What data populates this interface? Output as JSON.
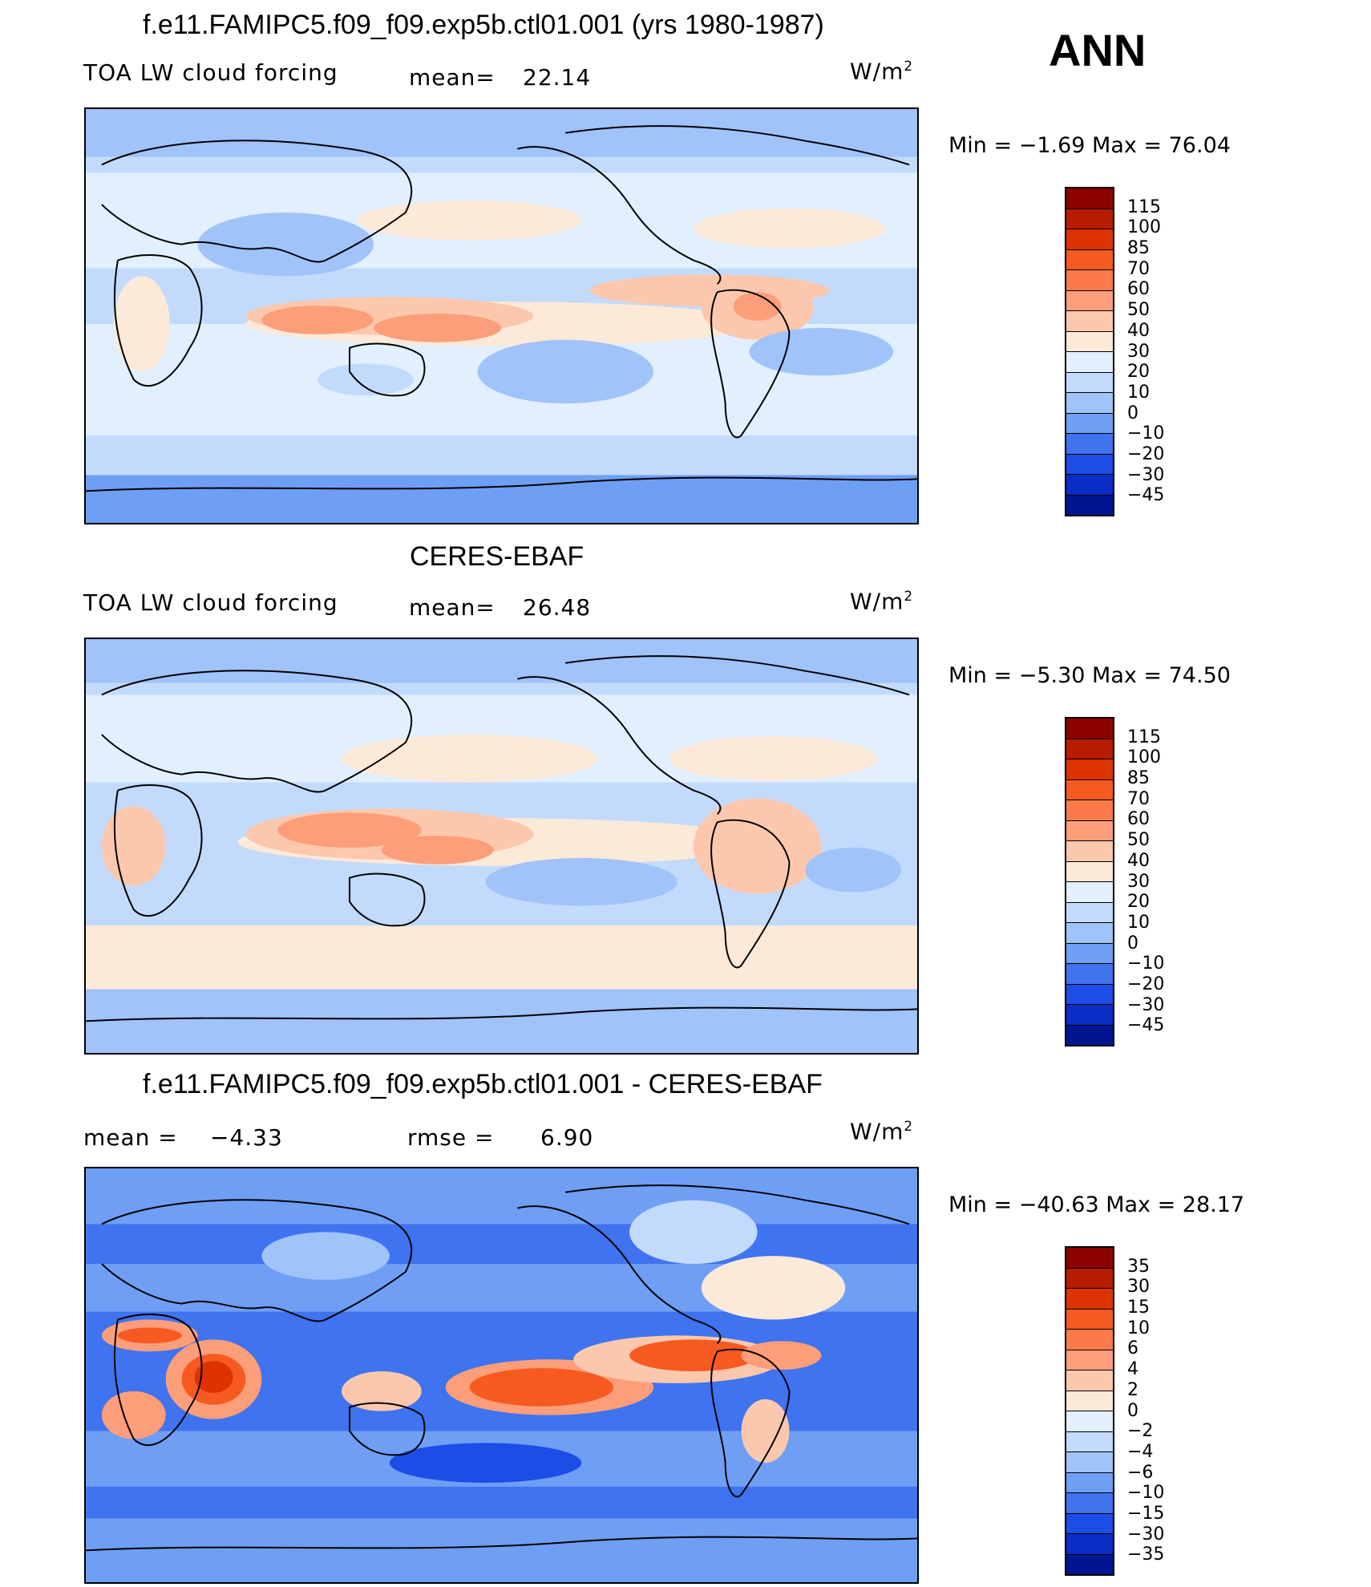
{
  "season": "ANN",
  "units_base": "W/m",
  "units_exp": "2",
  "panels": [
    {
      "title": "f.e11.FAMIPC5.f09_f09.exp5b.ctl01.001 (yrs 1980-1987)",
      "left_label": "TOA LW cloud forcing",
      "mid_label": "mean=",
      "mid_value": "22.14",
      "minmax": "Min =   −1.69  Max =    76.04",
      "colorbar": {
        "levels": [
          "115",
          "100",
          "85",
          "70",
          "60",
          "50",
          "40",
          "30",
          "20",
          "10",
          "0",
          "−10",
          "−20",
          "−30",
          "−45"
        ],
        "colors": [
          "#8c0000",
          "#b71c00",
          "#dc3300",
          "#f75a20",
          "#fc7a4a",
          "#fd9e7a",
          "#fcc8ad",
          "#fde9d8",
          "#e1efff",
          "#c2dafc",
          "#a0c3fa",
          "#6f9ef5",
          "#3f73ef",
          "#1c4de6",
          "#0a2cc7",
          "#001691"
        ]
      }
    },
    {
      "title": "CERES-EBAF",
      "left_label": "TOA LW cloud forcing",
      "mid_label": "mean=",
      "mid_value": "26.48",
      "minmax": "Min =   −5.30  Max =    74.50",
      "colorbar": {
        "levels": [
          "115",
          "100",
          "85",
          "70",
          "60",
          "50",
          "40",
          "30",
          "20",
          "10",
          "0",
          "−10",
          "−20",
          "−30",
          "−45"
        ],
        "colors": [
          "#8c0000",
          "#b71c00",
          "#dc3300",
          "#f75a20",
          "#fc7a4a",
          "#fd9e7a",
          "#fcc8ad",
          "#fde9d8",
          "#e1efff",
          "#c2dafc",
          "#a0c3fa",
          "#6f9ef5",
          "#3f73ef",
          "#1c4de6",
          "#0a2cc7",
          "#001691"
        ]
      }
    },
    {
      "title": "f.e11.FAMIPC5.f09_f09.exp5b.ctl01.001 - CERES-EBAF",
      "left_label": "mean =",
      "left_value": "−4.33",
      "mid_label": "rmse =",
      "mid_value": "6.90",
      "minmax": "Min = −40.63  Max =    28.17",
      "colorbar": {
        "levels": [
          "35",
          "30",
          "15",
          "10",
          "6",
          "4",
          "2",
          "0",
          "−2",
          "−4",
          "−6",
          "−10",
          "−15",
          "−30",
          "−35"
        ],
        "colors": [
          "#8c0000",
          "#b71c00",
          "#dc3300",
          "#f75a20",
          "#fc7a4a",
          "#fd9e7a",
          "#fcc8ad",
          "#fde9d8",
          "#e1efff",
          "#c2dafc",
          "#a0c3fa",
          "#6f9ef5",
          "#3f73ef",
          "#1c4de6",
          "#0a2cc7",
          "#001691"
        ]
      }
    }
  ]
}
